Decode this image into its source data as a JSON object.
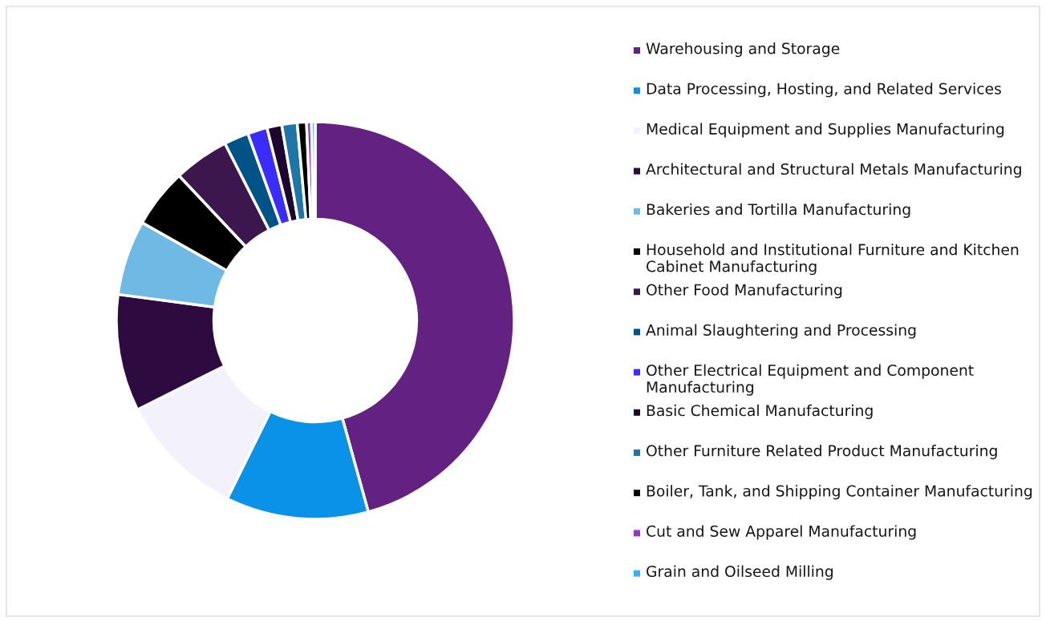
{
  "chart_data": {
    "type": "donut",
    "categories": [
      "Warehousing and Storage",
      "Data Processing, Hosting, and Related Services",
      "Medical Equipment and Supplies Manufacturing",
      "Architectural and Structural Metals Manufacturing",
      "Bakeries and Tortilla Manufacturing",
      "Household and Institutional Furniture and Kitchen Cabinet Manufacturing",
      "Other Food Manufacturing",
      "Animal Slaughtering and Processing",
      "Other Electrical Equipment and Component Manufacturing",
      "Basic Chemical Manufacturing",
      "Other Furniture Related Product Manufacturing",
      "Boiler, Tank, and Shipping Container Manufacturing",
      "Cut and Sew Apparel Manufacturing",
      "Grain and Oilseed Milling"
    ],
    "values": [
      45.7,
      11.6,
      10.3,
      9.5,
      6.1,
      4.8,
      4.5,
      2.0,
      1.6,
      1.2,
      1.25,
      0.75,
      0.4,
      0.3
    ],
    "colors": [
      "#632282",
      "#0a92e8",
      "#f3f1fb",
      "#2d0a40",
      "#6ebae4",
      "#000000",
      "#3b174d",
      "#005387",
      "#3a2cff",
      "#1c0630",
      "#1c77a8",
      "#000000",
      "#9636c8",
      "#33b1f5"
    ],
    "legend": "right"
  }
}
